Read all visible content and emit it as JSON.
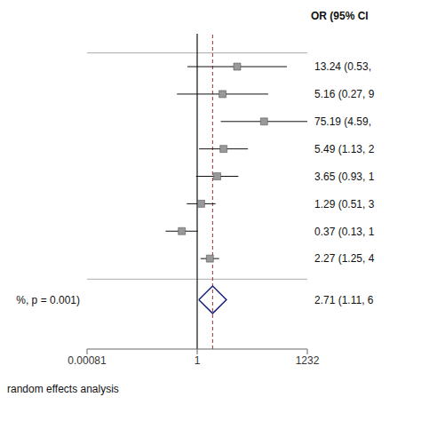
{
  "chart_data": {
    "type": "forest",
    "title": "OR (95% CI",
    "categories": [
      "13.24 (0.53,",
      "5.16 (0.27, 9",
      "75.19 (4.59,",
      "5.49 (1.13, 2",
      "3.65 (0.93, 1",
      "1.29 (0.51, 3",
      "0.37 (0.13, 1",
      "2.27 (1.25, 4"
    ],
    "values": [
      13.24,
      5.16,
      75.19,
      5.49,
      3.65,
      1.29,
      0.37,
      2.27
    ],
    "error_bars": {
      "low": [
        0.53,
        0.27,
        4.59,
        1.13,
        0.93,
        0.51,
        0.13,
        1.25
      ],
      "high": [
        330.0,
        98.0,
        1232.0,
        26.6,
        14.3,
        3.27,
        1.05,
        4.13
      ],
      "color": "#111111"
    },
    "color": "#999999",
    "marker": "square",
    "pooled": {
      "label": "2.71 (1.11, 6",
      "value": 2.71,
      "ci_low": 1.11,
      "ci_high": 6.6,
      "color": "#1a237e"
    },
    "annotations": [
      "%, p = 0.001)",
      "random effects analysis"
    ],
    "reference_lines": [
      {
        "x": 1,
        "color": "#111111",
        "line_style": "solid"
      },
      {
        "x": 2.71,
        "color": "#993333",
        "line_style": "dashed"
      }
    ],
    "separator_color": "#aaaaaa",
    "log": "x",
    "xlim": [
      0.00081,
      1232
    ],
    "xticks": [
      0.00081,
      1,
      1232
    ],
    "grid": false
  }
}
